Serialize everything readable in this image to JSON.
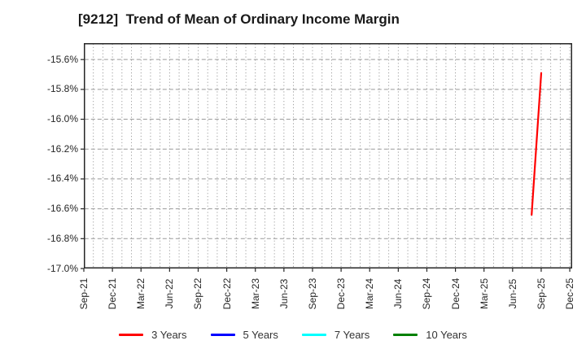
{
  "header": {
    "title": "[9212]  Trend of Mean of Ordinary Income Margin"
  },
  "chart_data": {
    "type": "line",
    "title": "[9212]  Trend of Mean of Ordinary Income Margin",
    "x_unit": "month",
    "x_start": "Sep-21",
    "x_end": "Dec-25",
    "x_tick_step_months": 3,
    "x_tick_labels": [
      "Sep-21",
      "Dec-21",
      "Mar-22",
      "Jun-22",
      "Sep-22",
      "Dec-22",
      "Mar-23",
      "Jun-23",
      "Sep-23",
      "Dec-23",
      "Mar-24",
      "Jun-24",
      "Sep-24",
      "Dec-24",
      "Mar-25",
      "Jun-25",
      "Sep-25",
      "Dec-25"
    ],
    "xlim_months": [
      0,
      51.25
    ],
    "ylim": [
      -17.0,
      -15.49
    ],
    "y_ticks": [
      -15.6,
      -15.8,
      -16.0,
      -16.2,
      -16.4,
      -16.6,
      -16.8,
      -17.0
    ],
    "y_tick_suffix": "%",
    "grid": {
      "vertical": "dotted, one line per month",
      "horizontal": "dashed, one line per y tick",
      "color": "#9a9a9a"
    },
    "axis_color": "#262626",
    "series": [
      {
        "name": "3 Years",
        "color": "#ff0000",
        "points": [
          {
            "month": "Aug-25",
            "value": -16.64
          },
          {
            "month": "Sep-25",
            "value": -15.69
          }
        ]
      },
      {
        "name": "5 Years",
        "color": "#0000ff",
        "points": []
      },
      {
        "name": "7 Years",
        "color": "#00ffff",
        "points": []
      },
      {
        "name": "10 Years",
        "color": "#008000",
        "points": []
      }
    ],
    "legend_position": "bottom"
  }
}
